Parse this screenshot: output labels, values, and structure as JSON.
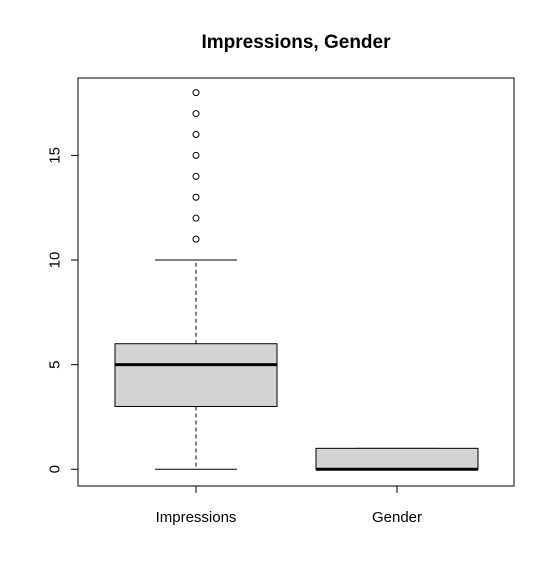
{
  "chart_data": {
    "type": "boxplot",
    "title": "Impressions, Gender",
    "xlabel": "",
    "ylabel": "",
    "ylim": [
      -0.8,
      18.7
    ],
    "y_ticks": [
      0,
      5,
      10,
      15
    ],
    "y_tick_labels": [
      "0",
      "5",
      "10",
      "15"
    ],
    "categories": [
      "Impressions",
      "Gender"
    ],
    "boxes": [
      {
        "name": "Impressions",
        "whisker_low": 0,
        "q1": 3,
        "median": 5,
        "q3": 6,
        "whisker_high": 10,
        "outliers": [
          11,
          12,
          13,
          14,
          15,
          16,
          17,
          18
        ]
      },
      {
        "name": "Gender",
        "whisker_low": 0,
        "q1": 0,
        "median": 0,
        "q3": 1,
        "whisker_high": 1,
        "outliers": []
      }
    ],
    "box_fill": "#d3d3d3",
    "line_color": "#000000",
    "grid": false,
    "legend": "none"
  }
}
